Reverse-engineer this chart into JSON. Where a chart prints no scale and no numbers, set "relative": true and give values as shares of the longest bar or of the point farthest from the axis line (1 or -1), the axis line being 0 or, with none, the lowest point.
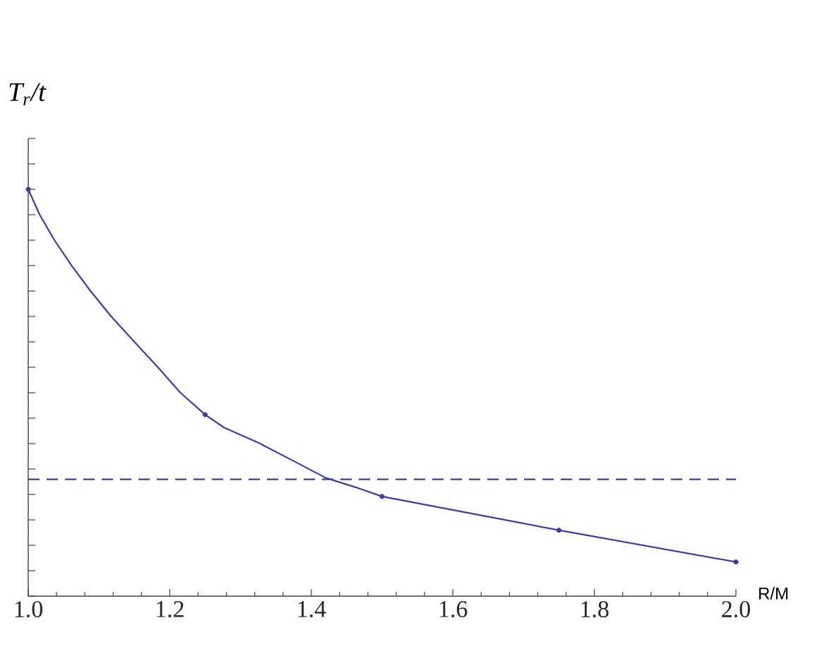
{
  "chart_data": {
    "type": "line",
    "ylabel": "T$_{r}$/t",
    "xlabel": "R/M",
    "relative": true,
    "xlim": [
      1,
      2
    ],
    "xticks": [
      {
        "value": 1,
        "label": "1.0"
      },
      1.2,
      1.4,
      1.6,
      1.8,
      {
        "value": 2,
        "label": "2.0"
      }
    ],
    "series": [
      {
        "color": "#3d3d99",
        "x": [
          1,
          1.016,
          1.037,
          1.061,
          1.088,
          1.117,
          1.15,
          1.183,
          1.215,
          1.25,
          1.277,
          1.325,
          1.373,
          1.42,
          1.469,
          1.5,
          1.75,
          2
        ],
        "values": [
          1,
          0.938,
          0.875,
          0.813,
          0.75,
          0.688,
          0.625,
          0.563,
          0.5,
          0.446,
          0.414,
          0.377,
          0.334,
          0.291,
          0.264,
          0.245,
          0.162,
          0.084
        ]
      },
      {
        "type": "scatter",
        "color": "#3d3d99",
        "marker": "circle",
        "x": [
          1,
          1.25,
          1.5,
          1.75,
          2
        ],
        "values": [
          1,
          0.446,
          0.245,
          0.162,
          0.084
        ]
      }
    ],
    "ref_lines": [
      {
        "axis": "y",
        "value": 0.287,
        "color": "#3d3d99",
        "line_style": "dashed"
      }
    ]
  }
}
